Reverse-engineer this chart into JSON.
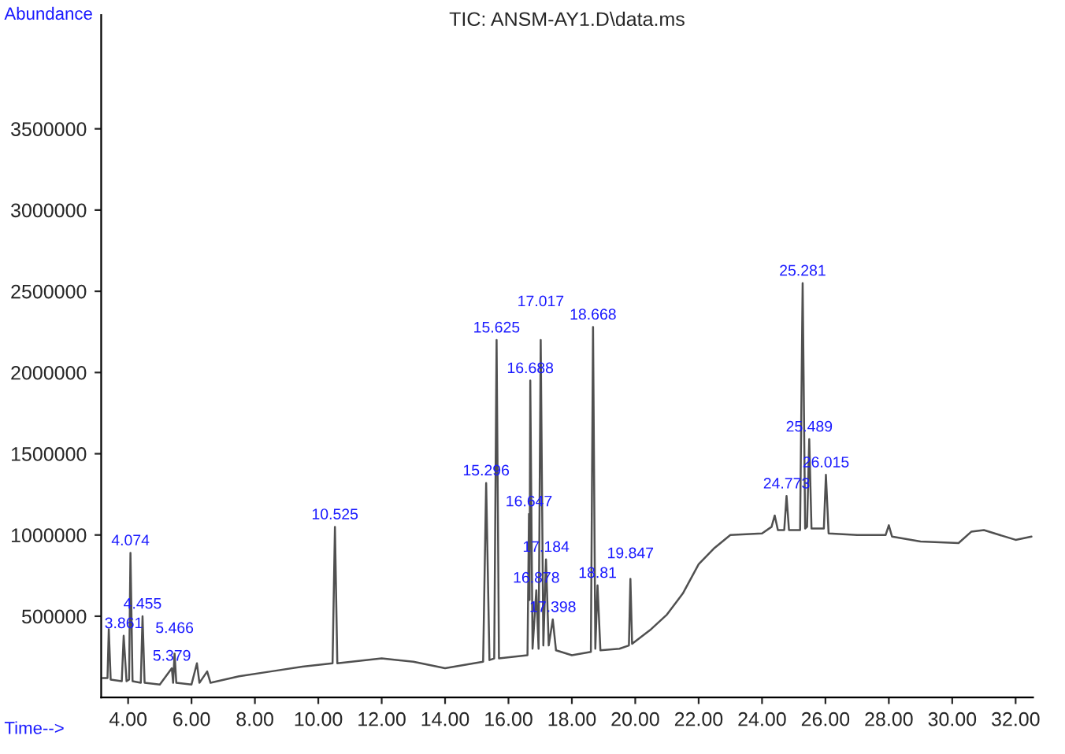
{
  "chart_data": {
    "type": "line",
    "title": "TIC: ANSM-AY1.D\\data.ms",
    "xlabel": "Time-->",
    "ylabel": "Abundance",
    "xlim": [
      3.15,
      32.55
    ],
    "ylim": [
      0,
      4200000
    ],
    "xticks": [
      {
        "value": 4,
        "label": "4.00"
      },
      {
        "value": 6,
        "label": "6.00"
      },
      {
        "value": 8,
        "label": "8.00"
      },
      {
        "value": 10,
        "label": "10.00"
      },
      {
        "value": 12,
        "label": "12.00"
      },
      {
        "value": 14,
        "label": "14.00"
      },
      {
        "value": 16,
        "label": "16.00"
      },
      {
        "value": 18,
        "label": "18.00"
      },
      {
        "value": 20,
        "label": "20.00"
      },
      {
        "value": 22,
        "label": "22.00"
      },
      {
        "value": 24,
        "label": "24.00"
      },
      {
        "value": 26,
        "label": "26.00"
      },
      {
        "value": 28,
        "label": "28.00"
      },
      {
        "value": 30,
        "label": "30.00"
      },
      {
        "value": 32,
        "label": "32.00"
      }
    ],
    "yticks": [
      500000,
      1000000,
      1500000,
      2000000,
      2500000,
      3000000,
      3500000
    ],
    "grid": false,
    "legend": false,
    "marker": "none",
    "line_style": "solid",
    "series": [
      {
        "color": "#505050",
        "x": [
          3.2,
          3.35,
          3.39,
          3.45,
          3.8,
          3.86,
          3.95,
          4.03,
          4.074,
          4.14,
          4.4,
          4.455,
          4.52,
          5.0,
          5.379,
          5.42,
          5.466,
          5.52,
          6.0,
          6.171,
          6.25,
          6.494,
          6.6,
          7.5,
          8.5,
          9.5,
          10.45,
          10.525,
          10.6,
          12.0,
          13.0,
          14.0,
          15.2,
          15.296,
          15.4,
          15.55,
          15.625,
          15.7,
          16.6,
          16.647,
          16.665,
          16.688,
          16.76,
          16.878,
          16.95,
          17.017,
          17.1,
          17.184,
          17.27,
          17.398,
          17.5,
          18.0,
          18.6,
          18.668,
          18.74,
          18.81,
          18.9,
          19.5,
          19.8,
          19.847,
          19.9,
          20.5,
          21.0,
          21.5,
          22.0,
          22.5,
          23.0,
          24.0,
          24.3,
          24.4,
          24.5,
          24.7,
          24.773,
          24.85,
          25.2,
          25.281,
          25.36,
          25.42,
          25.489,
          25.56,
          25.95,
          26.015,
          26.1,
          27.0,
          27.9,
          28.0,
          28.1,
          29.0,
          30.2,
          30.6,
          31.0,
          31.5,
          32.0,
          32.5
        ],
        "values": [
          120000,
          120000,
          420000,
          110000,
          100000,
          380000,
          100000,
          110000,
          890000,
          100000,
          90000,
          500000,
          90000,
          80000,
          180000,
          90000,
          270000,
          90000,
          80000,
          210000,
          90000,
          160000,
          90000,
          130000,
          160000,
          190000,
          210000,
          1050000,
          210000,
          240000,
          220000,
          180000,
          220000,
          1320000,
          230000,
          240000,
          2200000,
          240000,
          260000,
          1130000,
          600000,
          1950000,
          300000,
          660000,
          300000,
          2200000,
          320000,
          850000,
          320000,
          480000,
          290000,
          260000,
          280000,
          2280000,
          300000,
          690000,
          290000,
          300000,
          320000,
          730000,
          330000,
          420000,
          510000,
          640000,
          820000,
          920000,
          1000000,
          1010000,
          1050000,
          1120000,
          1030000,
          1030000,
          1240000,
          1030000,
          1030000,
          2550000,
          1040000,
          1050000,
          1590000,
          1040000,
          1040000,
          1370000,
          1010000,
          1000000,
          1000000,
          1060000,
          990000,
          960000,
          950000,
          1020000,
          1030000,
          1000000,
          970000,
          990000
        ]
      }
    ],
    "annotations": [
      {
        "text": "3.861",
        "x": 3.86,
        "y": 380000
      },
      {
        "text": "4.074",
        "x": 4.074,
        "y": 890000
      },
      {
        "text": "4.455",
        "x": 4.455,
        "y": 500000
      },
      {
        "text": "5.379",
        "x": 5.379,
        "y": 180000
      },
      {
        "text": "5.466",
        "x": 5.466,
        "y": 270000
      },
      {
        "text": "10.525",
        "x": 10.525,
        "y": 1050000
      },
      {
        "text": "15.296",
        "x": 15.296,
        "y": 1320000
      },
      {
        "text": "15.625",
        "x": 15.625,
        "y": 2200000
      },
      {
        "text": "16.647",
        "x": 16.647,
        "y": 1130000
      },
      {
        "text": "16.688",
        "x": 16.688,
        "y": 1950000
      },
      {
        "text": "16.878",
        "x": 16.878,
        "y": 660000
      },
      {
        "text": "17.017",
        "x": 17.017,
        "y": 2200000
      },
      {
        "text": "17.184",
        "x": 17.184,
        "y": 850000
      },
      {
        "text": "17.398",
        "x": 17.398,
        "y": 480000
      },
      {
        "text": "18.668",
        "x": 18.668,
        "y": 2280000
      },
      {
        "text": "18.81",
        "x": 18.81,
        "y": 690000
      },
      {
        "text": "19.847",
        "x": 19.847,
        "y": 730000
      },
      {
        "text": "24.773",
        "x": 24.773,
        "y": 1240000
      },
      {
        "text": "25.281",
        "x": 25.281,
        "y": 2550000
      },
      {
        "text": "25.489",
        "x": 25.489,
        "y": 1590000
      },
      {
        "text": "26.015",
        "x": 26.015,
        "y": 1370000
      }
    ]
  }
}
